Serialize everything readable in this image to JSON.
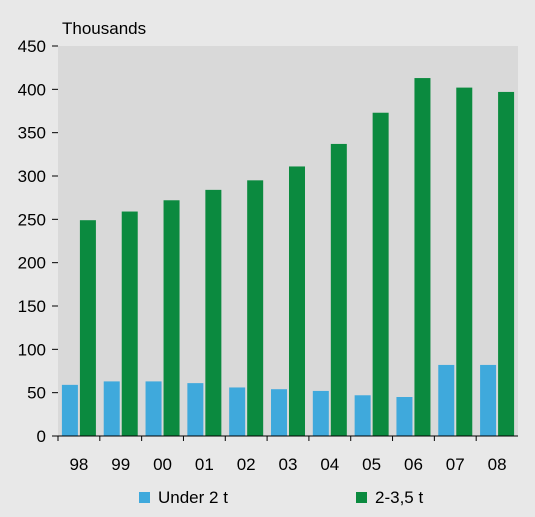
{
  "chart_data": {
    "type": "bar",
    "title": "",
    "unit_label": "Thousands",
    "xlabel": "",
    "ylabel": "Thousands",
    "categories": [
      "98",
      "99",
      "00",
      "01",
      "02",
      "03",
      "04",
      "05",
      "06",
      "07",
      "08"
    ],
    "series": [
      {
        "name": "Under 2 t",
        "color": "#3fa9dc",
        "values": [
          59,
          63,
          63,
          61,
          56,
          54,
          52,
          47,
          45,
          82,
          82
        ]
      },
      {
        "name": "2-3,5 t",
        "color": "#0b8a3f",
        "values": [
          249,
          259,
          272,
          284,
          295,
          311,
          337,
          373,
          413,
          402,
          397
        ]
      }
    ],
    "ylim": [
      0,
      450
    ],
    "yticks": [
      0,
      50,
      100,
      150,
      200,
      250,
      300,
      350,
      400,
      450
    ],
    "grid": false,
    "legend": "bottom"
  }
}
